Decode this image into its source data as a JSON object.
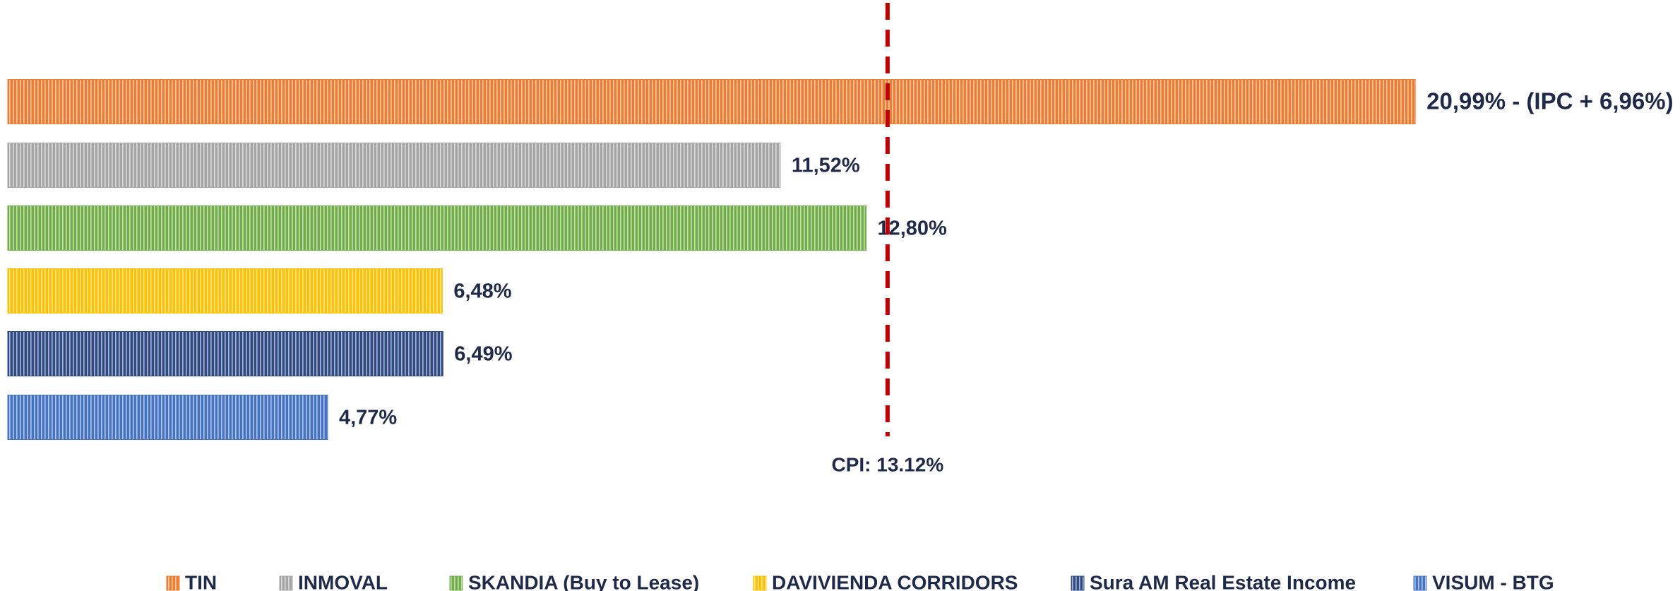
{
  "chart_data": {
    "type": "bar",
    "orientation": "horizontal",
    "xlim": [
      0,
      24
    ],
    "series": [
      {
        "name": "TIN",
        "color": "#ed7d31",
        "values": [
          20.99
        ],
        "value_labels": [
          "20,99% - (IPC + 6,96%)"
        ]
      },
      {
        "name": "INMOVAL",
        "color": "#a5a5a5",
        "values": [
          11.52
        ],
        "value_labels": [
          "11,52%"
        ]
      },
      {
        "name": "SKANDIA (Buy to Lease)",
        "color": "#70ad47",
        "values": [
          12.8
        ],
        "value_labels": [
          "12,80%"
        ]
      },
      {
        "name": "DAVIVIENDA CORRIDORS",
        "color": "#ffc000",
        "values": [
          6.48
        ],
        "value_labels": [
          "6,48%"
        ]
      },
      {
        "name": "Sura AM Real Estate Income",
        "color": "#2f4b85",
        "values": [
          6.49
        ],
        "value_labels": [
          "6,49%"
        ]
      },
      {
        "name": "VISUM - BTG",
        "color": "#4472c4",
        "values": [
          4.77
        ],
        "value_labels": [
          "4,77%"
        ]
      }
    ],
    "reference_line": {
      "value": 13.12,
      "label": "CPI: 13.12%",
      "color": "#c00000"
    },
    "legend": "bottom"
  }
}
